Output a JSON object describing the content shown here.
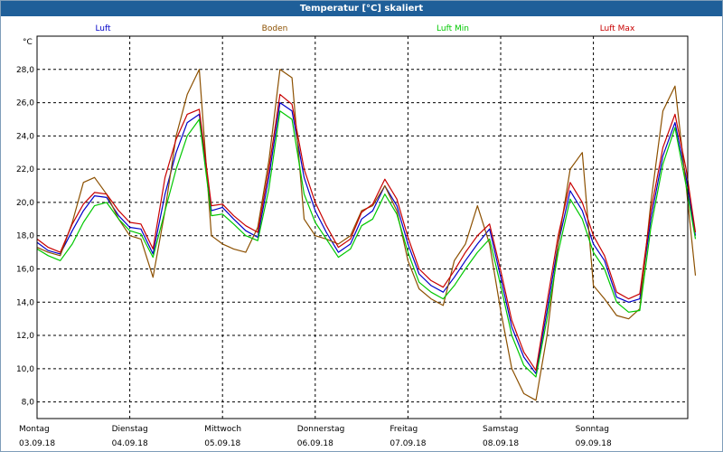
{
  "window": {
    "title": "Temperatur [°C] skaliert"
  },
  "chart_data": {
    "type": "line",
    "unit": "°C",
    "ylim": [
      7,
      30
    ],
    "yticks": [
      8,
      10,
      12,
      14,
      16,
      18,
      20,
      22,
      24,
      26,
      28
    ],
    "ytick_labels": [
      "8,0",
      "10,0",
      "12,0",
      "14,0",
      "16,0",
      "18,0",
      "20,0",
      "22,0",
      "24,0",
      "26,0",
      "28,0"
    ],
    "xlim": [
      0,
      7.1
    ],
    "grid": true,
    "legend_placement": "top",
    "days": [
      {
        "weekday": "Montag",
        "date": "03.09.18"
      },
      {
        "weekday": "Dienstag",
        "date": "04.09.18"
      },
      {
        "weekday": "Mittwoch",
        "date": "05.09.18"
      },
      {
        "weekday": "Donnerstag",
        "date": "06.09.18"
      },
      {
        "weekday": "Freitag",
        "date": "07.09.18"
      },
      {
        "weekday": "Samstag",
        "date": "08.09.18"
      },
      {
        "weekday": "Sonntag",
        "date": "09.09.18"
      }
    ],
    "x": [
      0.0,
      0.12,
      0.25,
      0.38,
      0.5,
      0.62,
      0.75,
      0.88,
      1.0,
      1.12,
      1.25,
      1.38,
      1.5,
      1.62,
      1.75,
      1.88,
      2.0,
      2.12,
      2.25,
      2.38,
      2.5,
      2.62,
      2.75,
      2.88,
      3.0,
      3.12,
      3.25,
      3.38,
      3.5,
      3.62,
      3.75,
      3.88,
      4.0,
      4.12,
      4.25,
      4.38,
      4.5,
      4.62,
      4.75,
      4.88,
      5.0,
      5.12,
      5.25,
      5.38,
      5.5,
      5.62,
      5.75,
      5.88,
      6.0,
      6.12,
      6.25,
      6.38,
      6.5,
      6.62,
      6.75,
      6.88,
      7.0,
      7.1
    ],
    "series": [
      {
        "name": "Luft",
        "color": "#0000c8",
        "values": [
          17.6,
          17.1,
          16.9,
          18.3,
          19.5,
          20.4,
          20.3,
          19.2,
          18.5,
          18.4,
          16.9,
          20.5,
          23.0,
          24.8,
          25.3,
          19.5,
          19.7,
          19.0,
          18.3,
          17.9,
          21.5,
          26.0,
          25.5,
          21.5,
          19.5,
          18.2,
          17.0,
          17.5,
          19.0,
          19.5,
          21.0,
          19.8,
          17.5,
          15.7,
          15.0,
          14.6,
          15.5,
          16.5,
          17.5,
          18.4,
          15.5,
          12.5,
          10.7,
          9.7,
          13.5,
          17.5,
          20.7,
          19.5,
          17.5,
          16.5,
          14.3,
          14.0,
          14.2,
          19.0,
          22.8,
          24.8,
          21.5,
          18.0
        ]
      },
      {
        "name": "Boden",
        "color": "#8c5000",
        "values": [
          17.3,
          17.0,
          16.8,
          18.8,
          21.2,
          21.5,
          20.5,
          19.0,
          18.0,
          17.8,
          15.5,
          19.5,
          24.0,
          26.5,
          28.0,
          18.0,
          17.5,
          17.2,
          17.0,
          18.5,
          22.5,
          28.0,
          27.5,
          19.0,
          18.0,
          17.8,
          17.5,
          18.0,
          19.5,
          19.8,
          21.0,
          19.5,
          16.5,
          14.8,
          14.2,
          13.8,
          16.5,
          17.5,
          19.8,
          17.5,
          13.5,
          10.0,
          8.5,
          8.1,
          12.0,
          17.5,
          22.0,
          23.0,
          15.0,
          14.2,
          13.2,
          13.0,
          13.6,
          20.0,
          25.5,
          27.0,
          21.0,
          15.6
        ]
      },
      {
        "name": "Luft Min",
        "color": "#00c800",
        "values": [
          17.2,
          16.8,
          16.5,
          17.5,
          18.8,
          19.8,
          20.0,
          19.0,
          18.3,
          18.1,
          16.7,
          19.5,
          22.0,
          24.0,
          25.0,
          19.2,
          19.3,
          18.7,
          18.0,
          17.7,
          20.8,
          25.5,
          25.0,
          20.5,
          18.8,
          17.8,
          16.7,
          17.2,
          18.6,
          19.0,
          20.5,
          19.3,
          17.0,
          15.2,
          14.6,
          14.2,
          15.0,
          16.0,
          17.0,
          17.8,
          15.0,
          12.0,
          10.2,
          9.5,
          13.0,
          17.0,
          20.2,
          19.0,
          17.0,
          16.0,
          14.0,
          13.4,
          13.5,
          18.5,
          22.3,
          24.5,
          21.0,
          17.8
        ]
      },
      {
        "name": "Luft Max",
        "color": "#c80000",
        "values": [
          17.8,
          17.3,
          17.0,
          18.7,
          19.9,
          20.6,
          20.5,
          19.5,
          18.8,
          18.7,
          17.2,
          21.5,
          23.8,
          25.3,
          25.6,
          19.8,
          19.9,
          19.2,
          18.6,
          18.2,
          22.0,
          26.5,
          25.9,
          22.0,
          20.0,
          18.6,
          17.3,
          17.8,
          19.4,
          19.9,
          21.4,
          20.2,
          17.9,
          16.0,
          15.3,
          14.9,
          15.9,
          17.0,
          18.0,
          18.7,
          15.9,
          12.9,
          11.0,
          9.9,
          14.0,
          18.0,
          21.2,
          20.0,
          18.0,
          16.8,
          14.6,
          14.2,
          14.5,
          19.5,
          23.3,
          25.3,
          22.0,
          18.2
        ]
      }
    ]
  }
}
